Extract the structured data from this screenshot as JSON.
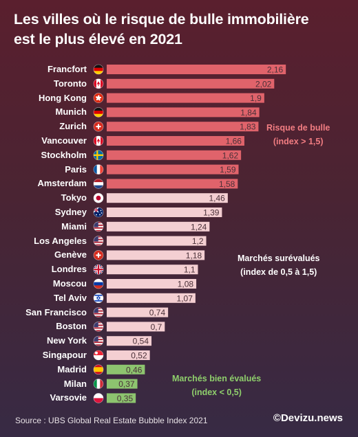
{
  "title_line1": "Les villes où le risque de bulle immobilière",
  "title_line2": "est le plus élevé en 2021",
  "chart_data": {
    "type": "bar",
    "orientation": "horizontal",
    "categories": [
      "Francfort",
      "Toronto",
      "Hong Kong",
      "Munich",
      "Zurich",
      "Vancouver",
      "Stockholm",
      "Paris",
      "Amsterdam",
      "Tokyo",
      "Sydney",
      "Miami",
      "Los Angeles",
      "Genève",
      "Londres",
      "Moscou",
      "Tel Aviv",
      "San Francisco",
      "Boston",
      "New York",
      "Singapour",
      "Madrid",
      "Milan",
      "Varsovie"
    ],
    "values": [
      2.16,
      2.02,
      1.9,
      1.84,
      1.83,
      1.66,
      1.62,
      1.59,
      1.58,
      1.46,
      1.39,
      1.24,
      1.2,
      1.18,
      1.1,
      1.08,
      1.07,
      0.74,
      0.7,
      0.54,
      0.52,
      0.46,
      0.37,
      0.35
    ],
    "value_labels": [
      "2,16",
      "2,02",
      "1,9",
      "1,84",
      "1,83",
      "1,66",
      "1,62",
      "1,59",
      "1,58",
      "1,46",
      "1,39",
      "1,24",
      "1,2",
      "1,18",
      "1,1",
      "1,08",
      "1,07",
      "0,74",
      "0,7",
      "0,54",
      "0,52",
      "0,46",
      "0,37",
      "0,35"
    ],
    "flags": [
      "de",
      "ca",
      "hk",
      "de",
      "ch",
      "ca",
      "se",
      "fr",
      "nl",
      "jp",
      "au",
      "us",
      "us",
      "ch",
      "gb",
      "ru",
      "il",
      "us",
      "us",
      "us",
      "sg",
      "es",
      "it",
      "pl"
    ],
    "groups": [
      {
        "label_line1": "Risque de bulle",
        "label_line2": "(index > 1,5)",
        "color": "#e0636b",
        "label_color": "#f27d82"
      },
      {
        "label_line1": "Marchés surévalués",
        "label_line2": "(index de 0,5 à 1,5)",
        "color": "#f4cfd2",
        "label_color": "#ffffff"
      },
      {
        "label_line1": "Marchés bien évalués",
        "label_line2": "(index < 0,5)",
        "color": "#8dc46f",
        "label_color": "#8fcf6c"
      }
    ],
    "group_of_bar": [
      0,
      0,
      0,
      0,
      0,
      0,
      0,
      0,
      0,
      1,
      1,
      1,
      1,
      1,
      1,
      1,
      1,
      1,
      1,
      1,
      1,
      2,
      2,
      2
    ],
    "xlim": [
      0,
      2.2
    ]
  },
  "source": "Source : UBS Global Real Estate Bubble Index 2021",
  "brand": "©Devizu.news"
}
